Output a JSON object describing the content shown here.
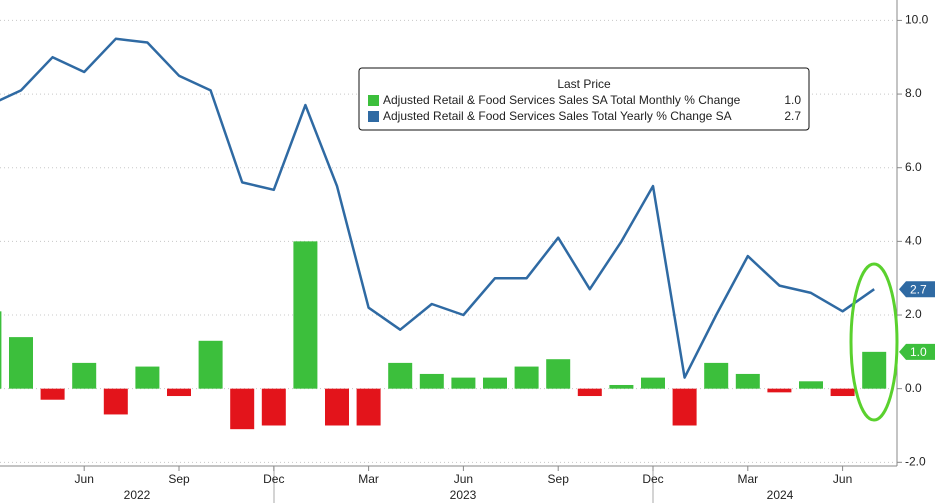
{
  "chart_data": {
    "type": "bar_line",
    "legend_title": "Last Price",
    "categories": [
      null,
      null,
      null,
      "Jun",
      null,
      null,
      "Sep",
      null,
      null,
      "Dec",
      null,
      null,
      "Mar",
      null,
      null,
      "Jun",
      null,
      null,
      "Sep",
      null,
      null,
      "Dec",
      null,
      null,
      "Mar",
      null,
      null,
      "Jun",
      null
    ],
    "year_labels": [
      "2022",
      "2023",
      "2024"
    ],
    "series": [
      {
        "name": "Adjusted Retail & Food Services Sales SA Total Monthly % Change",
        "kind": "bar",
        "color": "#3cbf3c",
        "negative_color": "#e3141b",
        "last_label": "1.0",
        "values": [
          2.1,
          1.4,
          -0.3,
          0.7,
          -0.7,
          0.6,
          -0.2,
          1.3,
          -1.1,
          -1.0,
          4.0,
          -1.0,
          -1.0,
          0.7,
          0.4,
          0.3,
          0.3,
          0.6,
          0.8,
          -0.2,
          0.1,
          0.3,
          -1.0,
          0.7,
          0.4,
          -0.1,
          0.2,
          -0.2,
          1.0
        ]
      },
      {
        "name": "Adjusted Retail & Food Services Sales Total Yearly % Change SA",
        "kind": "line",
        "color": "#2f6aa3",
        "last_label": "2.7",
        "values": [
          7.7,
          8.1,
          9.0,
          8.6,
          9.5,
          9.4,
          8.5,
          8.1,
          5.6,
          5.4,
          7.7,
          5.5,
          2.2,
          1.6,
          2.3,
          2.0,
          3.0,
          3.0,
          4.1,
          2.7,
          4.0,
          5.5,
          0.3,
          2.0,
          3.6,
          2.8,
          2.6,
          2.1,
          2.7
        ]
      }
    ],
    "ylim": [
      -2.1,
      10.5
    ],
    "yticks": [
      {
        "value": -2,
        "label": "-2.0"
      },
      {
        "value": 0,
        "label": "0.0"
      },
      {
        "value": 2,
        "label": "2.0"
      },
      {
        "value": 4,
        "label": "4.0"
      },
      {
        "value": 6,
        "label": "6.0"
      },
      {
        "value": 8,
        "label": "8.0"
      },
      {
        "value": 10,
        "label": "10.0"
      }
    ],
    "grid": true
  }
}
